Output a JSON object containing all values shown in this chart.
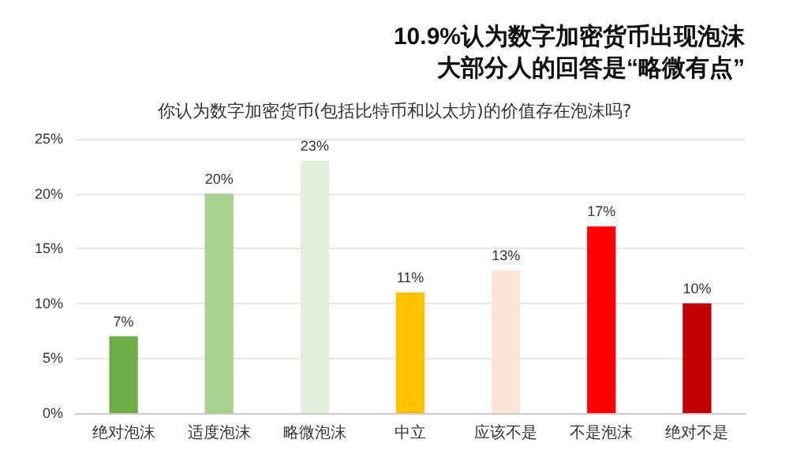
{
  "chart_data": {
    "type": "bar",
    "title": "你认为数字加密货币(包括比特币和以太坊)的价值存在泡沫吗?",
    "annotations": [
      "10.9%认为数字加密货币出现泡沫",
      "大部分人的回答是“略微有点”"
    ],
    "categories": [
      "绝对泡沫",
      "适度泡沫",
      "略微泡沫",
      "中立",
      "应该不是",
      "不是泡沫",
      "绝对不是"
    ],
    "values": [
      7,
      20,
      23,
      11,
      13,
      17,
      10
    ],
    "colors": [
      "#70ad47",
      "#a9d18e",
      "#e2efd9",
      "#ffc000",
      "#fbe5d6",
      "#ff0000",
      "#c00000"
    ],
    "value_labels": [
      "7%",
      "20%",
      "23%",
      "11%",
      "13%",
      "17%",
      "10%"
    ],
    "ylim": [
      0,
      25
    ],
    "yticks": [
      {
        "value": 0,
        "label": "0%"
      },
      {
        "value": 5,
        "label": "5%"
      },
      {
        "value": 10,
        "label": "10%"
      },
      {
        "value": 15,
        "label": "15%"
      },
      {
        "value": 20,
        "label": "20%"
      },
      {
        "value": 25,
        "label": "25%"
      }
    ],
    "grid": "y"
  }
}
